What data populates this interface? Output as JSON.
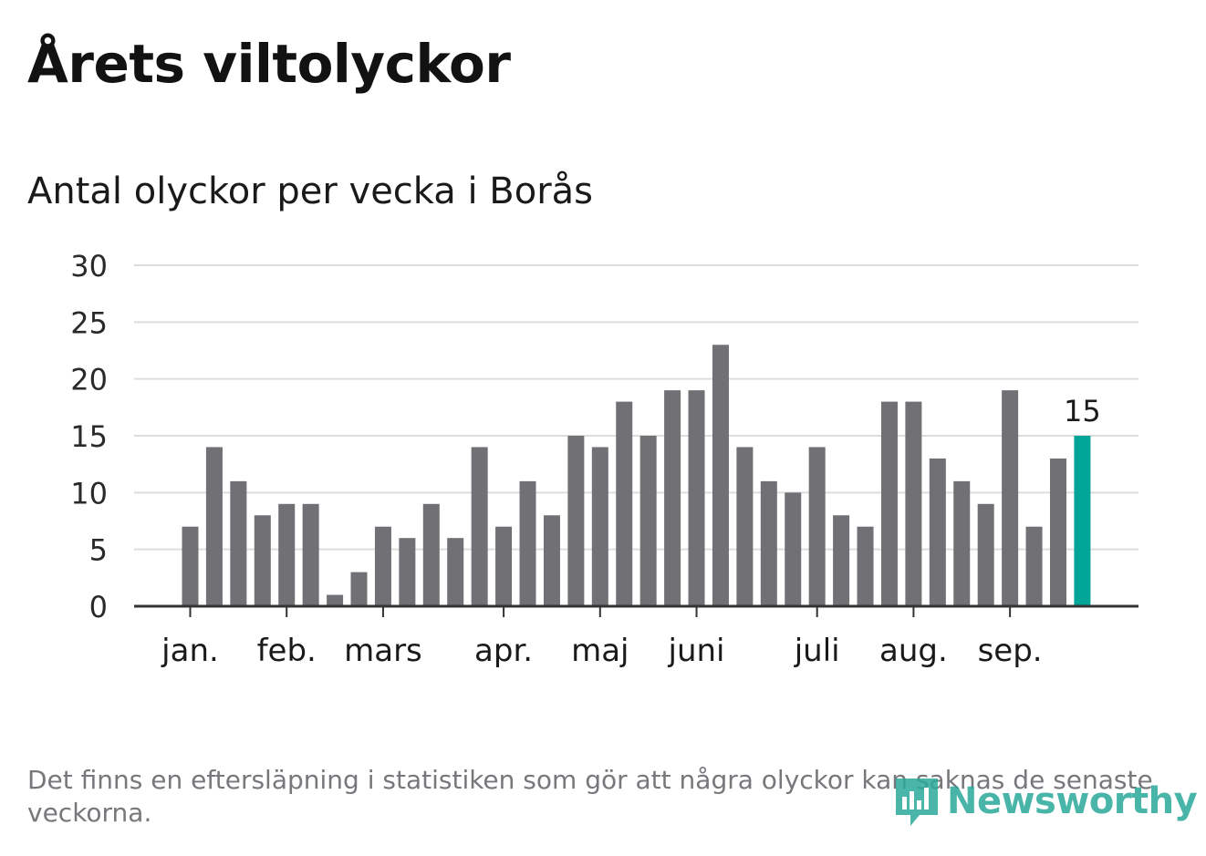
{
  "title": "Årets viltolyckor",
  "subtitle": "Antal olyckor per vecka i Borås",
  "footnote": "Det finns en eftersläpning i statistiken som gör att några olyckor kan saknas de senaste veckorna.",
  "logo": {
    "text": "Newsworthy",
    "icon": "bar-chart-speech-bubble-icon"
  },
  "colors": {
    "bar": "#707075",
    "highlight": "#00a597",
    "grid": "#dddddd",
    "axis": "#333333"
  },
  "chart_data": {
    "type": "bar",
    "xlabel": "",
    "ylabel": "",
    "ylim": [
      0,
      30
    ],
    "yticks": [
      0,
      5,
      10,
      15,
      20,
      25,
      30
    ],
    "grid": true,
    "values": [
      7,
      14,
      11,
      8,
      9,
      9,
      1,
      3,
      7,
      6,
      9,
      6,
      14,
      7,
      11,
      8,
      15,
      14,
      18,
      15,
      19,
      19,
      23,
      14,
      11,
      10,
      14,
      8,
      7,
      18,
      18,
      13,
      11,
      9,
      19,
      7,
      13,
      15
    ],
    "highlight_index": 37,
    "highlight_label": "15",
    "month_labels": [
      {
        "label": "jan.",
        "bar_index": 0
      },
      {
        "label": "feb.",
        "bar_index": 4
      },
      {
        "label": "mars",
        "bar_index": 8
      },
      {
        "label": "apr.",
        "bar_index": 13
      },
      {
        "label": "maj",
        "bar_index": 17
      },
      {
        "label": "juni",
        "bar_index": 21
      },
      {
        "label": "juli",
        "bar_index": 26
      },
      {
        "label": "aug.",
        "bar_index": 30
      },
      {
        "label": "sep.",
        "bar_index": 34
      }
    ]
  }
}
